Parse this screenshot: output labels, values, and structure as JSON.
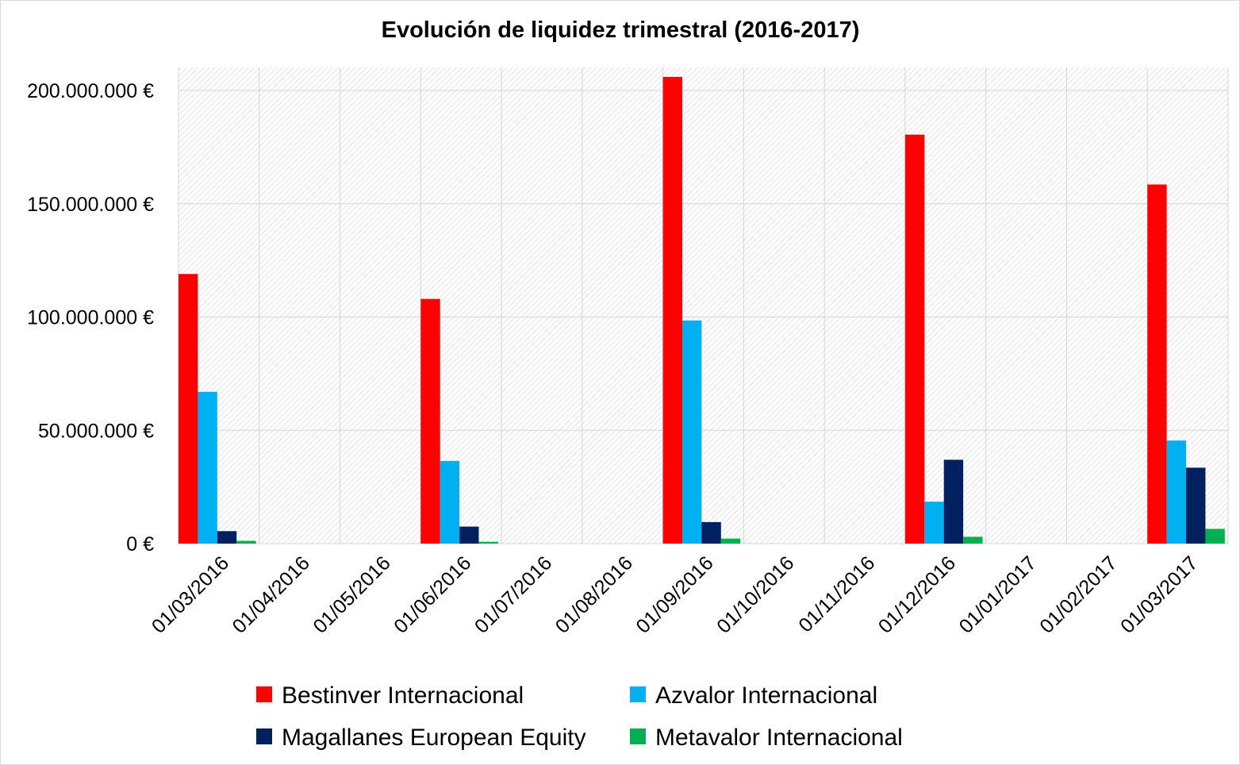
{
  "chart_data": {
    "type": "bar",
    "title": "Evolución de liquidez trimestral (2016-2017)",
    "xlabel": "",
    "ylabel": "",
    "categories": [
      "01/03/2016",
      "01/04/2016",
      "01/05/2016",
      "01/06/2016",
      "01/07/2016",
      "01/08/2016",
      "01/09/2016",
      "01/10/2016",
      "01/11/2016",
      "01/12/2016",
      "01/01/2017",
      "01/02/2017",
      "01/03/2017"
    ],
    "ylim": [
      0,
      200000000
    ],
    "yticks": [
      0,
      50000000,
      100000000,
      150000000,
      200000000
    ],
    "ytick_labels": [
      "0 €",
      "50.000.000 €",
      "100.000.000 €",
      "150.000.000 €",
      "200.000.000 €"
    ],
    "grid": true,
    "legend_position": "bottom",
    "series": [
      {
        "name": "Bestinver Internacional",
        "color": "#ff0000",
        "values": [
          119000000,
          0,
          0,
          108000000,
          0,
          0,
          206000000,
          0,
          0,
          180500000,
          0,
          0,
          158500000
        ]
      },
      {
        "name": "Azvalor Internacional",
        "color": "#00b0f0",
        "values": [
          67000000,
          0,
          0,
          36500000,
          0,
          0,
          98500000,
          0,
          0,
          18500000,
          0,
          0,
          45500000
        ]
      },
      {
        "name": "Magallanes European Equity",
        "color": "#002060",
        "values": [
          5500000,
          0,
          0,
          7500000,
          0,
          0,
          9500000,
          0,
          0,
          37000000,
          0,
          0,
          33500000
        ]
      },
      {
        "name": "Metavalor Internacional",
        "color": "#00b050",
        "values": [
          1200000,
          0,
          0,
          800000,
          0,
          0,
          2200000,
          0,
          0,
          3000000,
          0,
          0,
          6500000
        ]
      }
    ]
  }
}
